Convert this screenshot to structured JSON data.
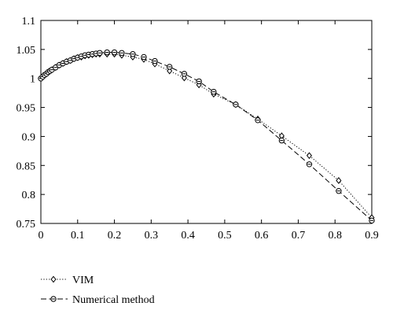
{
  "chart_data": {
    "type": "line",
    "title": "",
    "xlabel": "",
    "ylabel": "",
    "xlim": [
      0,
      0.9
    ],
    "ylim": [
      0.75,
      1.1
    ],
    "x_ticks": [
      "0",
      "0.1",
      "0.2",
      "0.3",
      "0.4",
      "0.5",
      "0.6",
      "0.7",
      "0.8",
      "0.9"
    ],
    "y_ticks": [
      "0.75",
      "0.8",
      "0.85",
      "0.9",
      "0.95",
      "1",
      "1.05",
      "1.1"
    ],
    "grid": false,
    "legend_position": "below",
    "series": [
      {
        "name": "VIM",
        "line_style": "dotted",
        "marker": "diamond",
        "x": [
          0,
          0.005,
          0.01,
          0.015,
          0.02,
          0.025,
          0.03,
          0.04,
          0.05,
          0.06,
          0.07,
          0.08,
          0.09,
          0.1,
          0.11,
          0.12,
          0.13,
          0.14,
          0.15,
          0.16,
          0.18,
          0.2,
          0.22,
          0.25,
          0.28,
          0.31,
          0.35,
          0.39,
          0.43,
          0.47,
          0.53,
          0.59,
          0.655,
          0.73,
          0.81,
          0.9
        ],
        "y": [
          1.0,
          1.003,
          1.006,
          1.008,
          1.011,
          1.013,
          1.015,
          1.019,
          1.023,
          1.026,
          1.029,
          1.031,
          1.034,
          1.036,
          1.037,
          1.039,
          1.04,
          1.041,
          1.042,
          1.042,
          1.042,
          1.042,
          1.04,
          1.037,
          1.033,
          1.025,
          1.013,
          1.001,
          0.989,
          0.973,
          0.955,
          0.93,
          0.901,
          0.867,
          0.824,
          0.76
        ]
      },
      {
        "name": "Numerical method",
        "line_style": "dashed",
        "marker": "circle",
        "x": [
          0,
          0.005,
          0.01,
          0.015,
          0.02,
          0.025,
          0.03,
          0.04,
          0.05,
          0.06,
          0.07,
          0.08,
          0.09,
          0.1,
          0.11,
          0.12,
          0.13,
          0.14,
          0.15,
          0.16,
          0.18,
          0.2,
          0.22,
          0.25,
          0.28,
          0.31,
          0.35,
          0.39,
          0.43,
          0.47,
          0.53,
          0.59,
          0.655,
          0.73,
          0.81,
          0.9
        ],
        "y": [
          1.0,
          1.003,
          1.006,
          1.008,
          1.011,
          1.013,
          1.015,
          1.019,
          1.023,
          1.026,
          1.029,
          1.031,
          1.034,
          1.036,
          1.038,
          1.04,
          1.041,
          1.042,
          1.043,
          1.044,
          1.045,
          1.045,
          1.044,
          1.042,
          1.037,
          1.03,
          1.02,
          1.008,
          0.995,
          0.977,
          0.955,
          0.928,
          0.893,
          0.852,
          0.806,
          0.755
        ]
      }
    ]
  }
}
